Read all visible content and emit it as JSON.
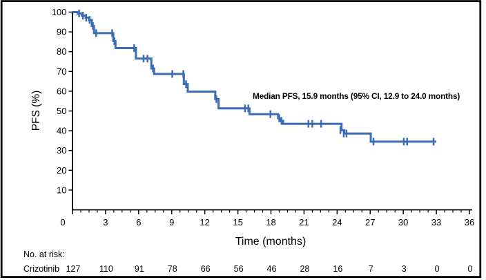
{
  "figure": {
    "colors": {
      "curve": "#3b6cb4",
      "axis": "#000000",
      "text": "#000000",
      "background": "#ffffff",
      "border": "#000000"
    }
  },
  "chart_data": {
    "type": "line",
    "subtype": "kaplan-meier-step",
    "title": "",
    "xlabel": "Time (months)",
    "ylabel": "PFS (%)",
    "xlim": [
      0,
      36
    ],
    "ylim": [
      0,
      100
    ],
    "grid": false,
    "legend_position": "none",
    "x_major_ticks": [
      0,
      3,
      6,
      9,
      12,
      15,
      18,
      21,
      24,
      27,
      30,
      33,
      36
    ],
    "x_tick_labels": [
      "0",
      "3",
      "6",
      "9",
      "12",
      "15",
      "18",
      "21",
      "24",
      "27",
      "30",
      "33",
      "36"
    ],
    "x_minor_tick_interval": 0.75,
    "y_major_ticks": [
      100,
      90,
      80,
      70,
      60,
      50,
      40,
      30,
      20,
      10
    ],
    "y_tick_labels": [
      "100",
      "90",
      "80",
      "70",
      "60",
      "50",
      "40",
      "30",
      "20",
      "10"
    ],
    "annotation": {
      "text": "Median PFS, 15.9 months (95% CI, 12.9 to 24.0 months)"
    },
    "series": [
      {
        "name": "Crizotinib",
        "color": "#3b6cb4",
        "end_time": 33.0,
        "steps": [
          [
            0,
            100
          ],
          [
            0.45,
            99.3
          ],
          [
            0.85,
            98.2
          ],
          [
            1.2,
            97.2
          ],
          [
            1.5,
            96.1
          ],
          [
            1.75,
            93.0
          ],
          [
            1.95,
            89.4
          ],
          [
            3.7,
            85.3
          ],
          [
            3.9,
            81.8
          ],
          [
            5.75,
            76.5
          ],
          [
            7.15,
            71.5
          ],
          [
            7.4,
            68.7
          ],
          [
            10.1,
            63.6
          ],
          [
            10.45,
            59.8
          ],
          [
            12.95,
            56.0
          ],
          [
            13.25,
            51.3
          ],
          [
            16.05,
            48.4
          ],
          [
            18.65,
            46.3
          ],
          [
            18.9,
            45.0
          ],
          [
            19.1,
            43.5
          ],
          [
            24.4,
            40.3
          ],
          [
            24.65,
            38.6
          ],
          [
            27.05,
            34.5
          ]
        ],
        "censor_marks": [
          [
            0.6,
            99.3
          ],
          [
            0.95,
            98.2
          ],
          [
            1.25,
            97.2
          ],
          [
            1.55,
            96.1
          ],
          [
            1.85,
            93.0
          ],
          [
            2.15,
            89.4
          ],
          [
            3.6,
            89.4
          ],
          [
            3.8,
            85.3
          ],
          [
            5.6,
            81.8
          ],
          [
            6.45,
            76.5
          ],
          [
            6.8,
            76.5
          ],
          [
            7.3,
            71.5
          ],
          [
            9.05,
            68.7
          ],
          [
            10.05,
            68.7
          ],
          [
            10.3,
            63.6
          ],
          [
            13.05,
            56.0
          ],
          [
            15.65,
            51.3
          ],
          [
            15.95,
            51.3
          ],
          [
            17.95,
            48.4
          ],
          [
            18.75,
            46.3
          ],
          [
            18.95,
            45.0
          ],
          [
            21.4,
            43.5
          ],
          [
            21.75,
            43.5
          ],
          [
            22.55,
            43.5
          ],
          [
            24.3,
            40.3
          ],
          [
            24.6,
            38.6
          ],
          [
            24.85,
            38.6
          ],
          [
            27.3,
            34.5
          ],
          [
            30.05,
            34.5
          ],
          [
            30.35,
            34.5
          ],
          [
            32.75,
            34.5
          ]
        ]
      }
    ],
    "at_risk": {
      "header": "No. at risk:",
      "times": [
        0,
        3,
        6,
        9,
        12,
        15,
        18,
        21,
        24,
        27,
        30,
        33,
        36
      ],
      "rows": [
        {
          "label": "Crizotinib",
          "values": [
            "127",
            "110",
            "91",
            "78",
            "66",
            "56",
            "46",
            "28",
            "16",
            "7",
            "3",
            "0",
            "0"
          ]
        }
      ]
    }
  }
}
